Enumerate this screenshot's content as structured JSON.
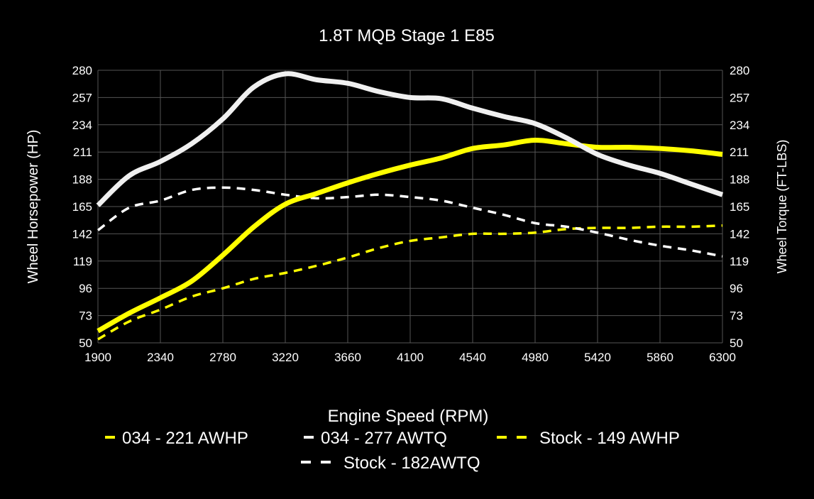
{
  "chart_data": {
    "type": "line",
    "title": "1.8T MQB Stage 1 E85",
    "xlabel": "Engine Speed (RPM)",
    "ylabel": "Wheel Horsepower (HP)",
    "y2label": "Wheel Torque (FT-LBS)",
    "xlim": [
      1900,
      6300
    ],
    "ylim": [
      50,
      280
    ],
    "y2lim": [
      50,
      280
    ],
    "xticks": [
      "1900",
      "2340",
      "2780",
      "3220",
      "3660",
      "4100",
      "4540",
      "4980",
      "5420",
      "5860",
      "6300"
    ],
    "yticks": [
      "50",
      "73",
      "96",
      "119",
      "142",
      "165",
      "188",
      "211",
      "234",
      "257",
      "280"
    ],
    "grid": true,
    "legend_position": "bottom",
    "x": [
      1900,
      2120,
      2340,
      2560,
      2780,
      3000,
      3220,
      3440,
      3660,
      3880,
      4100,
      4320,
      4540,
      4760,
      4980,
      5200,
      5420,
      5640,
      5860,
      6080,
      6300
    ],
    "series": [
      {
        "name": "034 - 221 AWHP",
        "color": "#ffff00",
        "style": "solid",
        "axis": "left",
        "values": [
          60,
          75,
          88,
          102,
          124,
          148,
          167,
          176,
          185,
          193,
          200,
          206,
          214,
          217,
          221,
          218,
          215,
          215,
          214,
          212,
          209
        ]
      },
      {
        "name": "034 - 277 AWTQ",
        "color": "#f0f0f0",
        "style": "solid",
        "axis": "right",
        "values": [
          166,
          191,
          203,
          218,
          239,
          266,
          277,
          272,
          269,
          262,
          257,
          256,
          248,
          241,
          235,
          223,
          209,
          200,
          193,
          184,
          175
        ]
      },
      {
        "name": "Stock - 149 AWHP",
        "color": "#ffff00",
        "style": "dashed",
        "axis": "left",
        "values": [
          53,
          68,
          78,
          89,
          96,
          104,
          109,
          115,
          122,
          130,
          136,
          139,
          142,
          142,
          143,
          146,
          147,
          147,
          148,
          148,
          149
        ]
      },
      {
        "name": "Stock - 182AWTQ",
        "color": "#ffffff",
        "style": "dashed",
        "axis": "right",
        "values": [
          145,
          164,
          170,
          179,
          181,
          179,
          175,
          172,
          173,
          175,
          173,
          170,
          164,
          158,
          151,
          148,
          143,
          137,
          132,
          128,
          123
        ]
      }
    ]
  }
}
